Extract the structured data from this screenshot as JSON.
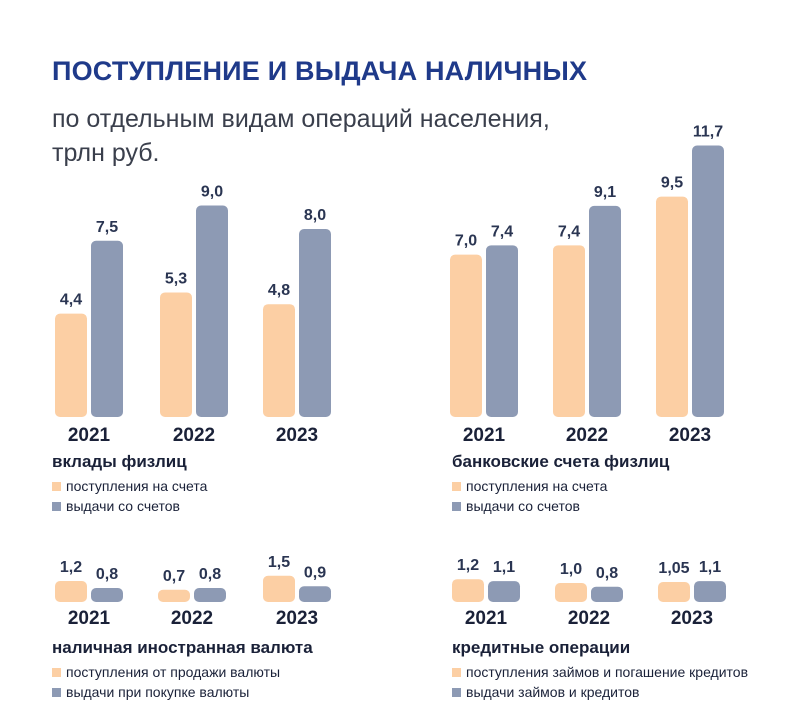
{
  "title": "ПОСТУПЛЕНИЕ И ВЫДАЧА НАЛИЧНЫХ",
  "subtitle_line1": "по отдельным видам операций населения,",
  "subtitle_line2": "трлн руб.",
  "colors": {
    "inflow": "#fccfa4",
    "outflow": "#8d9ab4"
  },
  "chart_data": [
    {
      "type": "bar",
      "title": "вклады физлиц",
      "categories": [
        "2021",
        "2022",
        "2023"
      ],
      "series": [
        {
          "name": "поступления на счета",
          "values": [
            4.4,
            5.3,
            4.8
          ],
          "labels": [
            "4,4",
            "5,3",
            "4,8"
          ]
        },
        {
          "name": "выдачи со счетов",
          "values": [
            7.5,
            9.0,
            8.0
          ],
          "labels": [
            "7,5",
            "9,0",
            "8,0"
          ]
        }
      ]
    },
    {
      "type": "bar",
      "title": "банковские счета физлиц",
      "categories": [
        "2021",
        "2022",
        "2023"
      ],
      "series": [
        {
          "name": "поступления на счета",
          "values": [
            7.0,
            7.4,
            9.5
          ],
          "labels": [
            "7,0",
            "7,4",
            "9,5"
          ]
        },
        {
          "name": "выдачи со счетов",
          "values": [
            7.4,
            9.1,
            11.7
          ],
          "labels": [
            "7,4",
            "9,1",
            "11,7"
          ]
        }
      ]
    },
    {
      "type": "bar",
      "title": "наличная иностранная валюта",
      "categories": [
        "2021",
        "2022",
        "2023"
      ],
      "series": [
        {
          "name": "поступления от продажи валюты",
          "values": [
            1.2,
            0.7,
            1.5
          ],
          "labels": [
            "1,2",
            "0,7",
            "1,5"
          ]
        },
        {
          "name": "выдачи при покупке валюты",
          "values": [
            0.8,
            0.8,
            0.9
          ],
          "labels": [
            "0,8",
            "0,8",
            "0,9"
          ]
        }
      ]
    },
    {
      "type": "bar",
      "title": "кредитные операции",
      "categories": [
        "2021",
        "2022",
        "2023"
      ],
      "series": [
        {
          "name": "поступления займов и погашение кредитов",
          "values": [
            1.2,
            1.0,
            1.05
          ],
          "labels": [
            "1,2",
            "1,0",
            "1,05"
          ]
        },
        {
          "name": "выдачи займов и кредитов",
          "values": [
            1.1,
            0.8,
            1.1
          ],
          "labels": [
            "1,1",
            "0,8",
            "1,1"
          ]
        }
      ]
    }
  ]
}
